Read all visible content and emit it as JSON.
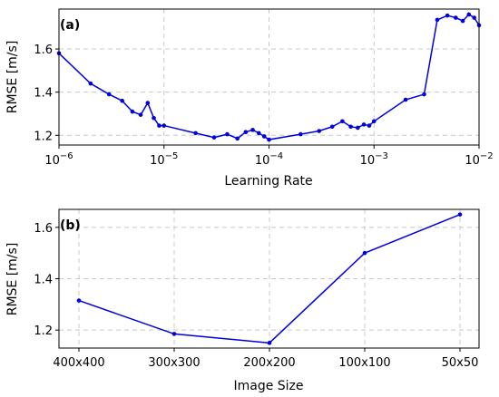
{
  "chart_data": [
    {
      "panel_label": "(a)",
      "type": "line",
      "xscale": "log",
      "xlabel": "Learning Rate",
      "ylabel": "RMSE [m/s]",
      "xlim": [
        1e-06,
        0.01
      ],
      "ylim": [
        1.155,
        1.785
      ],
      "xticks": [
        1e-06,
        1e-05,
        0.0001,
        0.001,
        0.01
      ],
      "xtick_labels": [
        {
          "base": "10",
          "exp": "−6"
        },
        {
          "base": "10",
          "exp": "−5"
        },
        {
          "base": "10",
          "exp": "−4"
        },
        {
          "base": "10",
          "exp": "−3"
        },
        {
          "base": "10",
          "exp": "−2"
        }
      ],
      "yticks": [
        1.2,
        1.4,
        1.6
      ],
      "ytick_labels": [
        "1.2",
        "1.4",
        "1.6"
      ],
      "grid": true,
      "color": "#0000dd",
      "x": [
        1e-06,
        2e-06,
        3e-06,
        4e-06,
        5e-06,
        6e-06,
        7e-06,
        8e-06,
        9e-06,
        1e-05,
        2e-05,
        3e-05,
        4e-05,
        5e-05,
        6e-05,
        7e-05,
        8e-05,
        9e-05,
        0.0001,
        0.0002,
        0.0003,
        0.0004,
        0.0005,
        0.0006,
        0.0007,
        0.0008,
        0.0009,
        0.001,
        0.002,
        0.003,
        0.004,
        0.005,
        0.006,
        0.007,
        0.008,
        0.009,
        0.01
      ],
      "y": [
        1.58,
        1.44,
        1.39,
        1.36,
        1.31,
        1.295,
        1.35,
        1.28,
        1.245,
        1.245,
        1.21,
        1.19,
        1.205,
        1.185,
        1.215,
        1.225,
        1.21,
        1.195,
        1.18,
        1.205,
        1.22,
        1.24,
        1.265,
        1.24,
        1.235,
        1.25,
        1.245,
        1.265,
        1.365,
        1.39,
        1.735,
        1.755,
        1.745,
        1.73,
        1.76,
        1.745,
        1.71
      ]
    },
    {
      "panel_label": "(b)",
      "type": "line",
      "xlabel": "Image Size",
      "ylabel": "RMSE [m/s]",
      "categories": [
        "400x400",
        "300x300",
        "200x200",
        "100x100",
        "50x50"
      ],
      "values": [
        1.315,
        1.185,
        1.15,
        1.5,
        1.65
      ],
      "ylim": [
        1.13,
        1.67
      ],
      "yticks": [
        1.2,
        1.4,
        1.6
      ],
      "ytick_labels": [
        "1.2",
        "1.4",
        "1.6"
      ],
      "grid": true,
      "color": "#0000dd"
    }
  ]
}
